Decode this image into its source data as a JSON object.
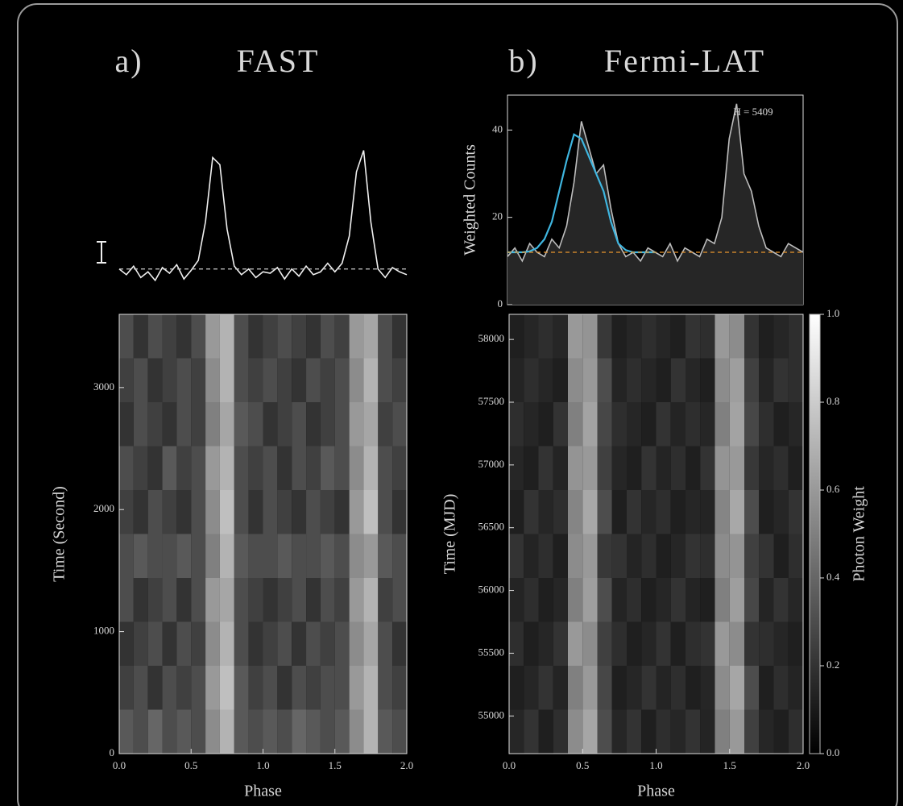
{
  "chart_data": [
    {
      "type": "line",
      "label": "a)",
      "title": "FAST",
      "x": [
        0,
        0.05,
        0.1,
        0.15,
        0.2,
        0.25,
        0.3,
        0.35,
        0.4,
        0.45,
        0.5,
        0.55,
        0.6,
        0.65,
        0.7,
        0.75,
        0.8,
        0.85,
        0.9,
        0.95,
        1,
        1.05,
        1.1,
        1.15,
        1.2,
        1.25,
        1.3,
        1.35,
        1.4,
        1.45,
        1.5,
        1.55,
        1.6,
        1.65,
        1.7,
        1.75,
        1.8,
        1.85,
        1.9,
        1.95,
        2
      ],
      "series": [
        {
          "color": "#f0f0f0",
          "values": [
            0.12,
            0.08,
            0.14,
            0.06,
            0.1,
            0.04,
            0.13,
            0.09,
            0.15,
            0.05,
            0.11,
            0.18,
            0.45,
            0.9,
            0.85,
            0.4,
            0.14,
            0.08,
            0.12,
            0.06,
            0.1,
            0.09,
            0.13,
            0.05,
            0.12,
            0.07,
            0.14,
            0.08,
            0.1,
            0.16,
            0.1,
            0.16,
            0.35,
            0.8,
            0.95,
            0.45,
            0.12,
            0.06,
            0.13,
            0.1,
            0.08
          ]
        }
      ],
      "baseline": 0.12,
      "baseline_color": "#cccccc",
      "xlim": [
        0,
        2
      ],
      "ylim": [
        0,
        1.1
      ]
    },
    {
      "type": "heatmap",
      "xlabel": "Phase",
      "ylabel": "Time (Second)",
      "xbins": [
        0,
        0.1,
        0.2,
        0.3,
        0.4,
        0.5,
        0.6,
        0.7,
        0.8,
        0.9,
        1,
        1.1,
        1.2,
        1.3,
        1.4,
        1.5,
        1.6,
        1.7,
        1.8,
        1.9,
        2
      ],
      "ybins": [
        0,
        360,
        720,
        1080,
        1440,
        1800,
        2160,
        2520,
        2880,
        3240,
        3600
      ],
      "z": [
        [
          0.35,
          0.3,
          0.4,
          0.3,
          0.35,
          0.3,
          0.55,
          0.7,
          0.35,
          0.3,
          0.35,
          0.3,
          0.4,
          0.35,
          0.3,
          0.35,
          0.55,
          0.7,
          0.35,
          0.3
        ],
        [
          0.25,
          0.3,
          0.2,
          0.3,
          0.25,
          0.3,
          0.6,
          0.75,
          0.35,
          0.25,
          0.3,
          0.2,
          0.3,
          0.25,
          0.3,
          0.3,
          0.6,
          0.7,
          0.3,
          0.25
        ],
        [
          0.2,
          0.25,
          0.3,
          0.2,
          0.3,
          0.25,
          0.55,
          0.7,
          0.3,
          0.2,
          0.25,
          0.3,
          0.2,
          0.3,
          0.25,
          0.3,
          0.55,
          0.65,
          0.3,
          0.2
        ],
        [
          0.3,
          0.2,
          0.25,
          0.3,
          0.2,
          0.3,
          0.6,
          0.65,
          0.3,
          0.25,
          0.2,
          0.25,
          0.3,
          0.2,
          0.3,
          0.25,
          0.6,
          0.7,
          0.25,
          0.3
        ],
        [
          0.3,
          0.35,
          0.3,
          0.3,
          0.35,
          0.3,
          0.5,
          0.7,
          0.35,
          0.3,
          0.3,
          0.35,
          0.3,
          0.3,
          0.35,
          0.3,
          0.55,
          0.6,
          0.35,
          0.3
        ],
        [
          0.25,
          0.2,
          0.3,
          0.25,
          0.2,
          0.3,
          0.55,
          0.75,
          0.3,
          0.2,
          0.3,
          0.25,
          0.2,
          0.3,
          0.25,
          0.2,
          0.6,
          0.75,
          0.3,
          0.2
        ],
        [
          0.3,
          0.25,
          0.2,
          0.35,
          0.25,
          0.3,
          0.6,
          0.7,
          0.3,
          0.25,
          0.3,
          0.2,
          0.3,
          0.25,
          0.35,
          0.3,
          0.55,
          0.7,
          0.3,
          0.25
        ],
        [
          0.2,
          0.3,
          0.25,
          0.2,
          0.3,
          0.25,
          0.5,
          0.65,
          0.35,
          0.3,
          0.2,
          0.25,
          0.3,
          0.2,
          0.25,
          0.3,
          0.6,
          0.65,
          0.25,
          0.3
        ],
        [
          0.25,
          0.3,
          0.2,
          0.25,
          0.3,
          0.25,
          0.55,
          0.7,
          0.3,
          0.25,
          0.3,
          0.25,
          0.2,
          0.3,
          0.25,
          0.3,
          0.55,
          0.7,
          0.3,
          0.25
        ],
        [
          0.3,
          0.2,
          0.3,
          0.25,
          0.2,
          0.3,
          0.6,
          0.7,
          0.3,
          0.2,
          0.25,
          0.3,
          0.25,
          0.2,
          0.3,
          0.25,
          0.6,
          0.65,
          0.3,
          0.2
        ]
      ],
      "zlim": [
        0,
        1
      ],
      "xlim": [
        0,
        2
      ],
      "ylim": [
        0,
        3600
      ],
      "xticks": [
        {
          "value": 0,
          "label": "0.0"
        },
        0.5,
        {
          "value": 1,
          "label": "1.0"
        },
        1.5,
        {
          "value": 2,
          "label": "2.0"
        }
      ],
      "yticks": [
        0,
        1000,
        2000,
        3000
      ]
    },
    {
      "type": "line",
      "label": "b)",
      "title": "Fermi-LAT",
      "ylabel": "Weighted Counts",
      "annotation": "H = 5409",
      "x": [
        0,
        0.05,
        0.1,
        0.15,
        0.2,
        0.25,
        0.3,
        0.35,
        0.4,
        0.45,
        0.5,
        0.55,
        0.6,
        0.65,
        0.7,
        0.75,
        0.8,
        0.85,
        0.9,
        0.95,
        1,
        1.05,
        1.1,
        1.15,
        1.2,
        1.25,
        1.3,
        1.35,
        1.4,
        1.45,
        1.5,
        1.55,
        1.6,
        1.65,
        1.7,
        1.75,
        1.8,
        1.85,
        1.9,
        1.95,
        2
      ],
      "series": [
        {
          "color": "#bdbdbd",
          "fill": "#262626",
          "values": [
            11,
            13,
            10,
            14,
            12,
            11,
            15,
            13,
            18,
            28,
            42,
            36,
            30,
            32,
            22,
            14,
            11,
            12,
            10,
            13,
            12,
            11,
            14,
            10,
            13,
            12,
            11,
            15,
            14,
            20,
            38,
            46,
            30,
            26,
            18,
            13,
            12,
            11,
            14,
            13,
            12
          ]
        },
        {
          "color": "#3fb6e0",
          "x": [
            0,
            0.05,
            0.1,
            0.15,
            0.2,
            0.25,
            0.3,
            0.35,
            0.4,
            0.45,
            0.5,
            0.55,
            0.6,
            0.65,
            0.7,
            0.75,
            0.8,
            0.85,
            0.9,
            0.95,
            1
          ],
          "values": [
            12,
            12,
            12,
            12.2,
            13,
            15,
            19,
            26,
            33,
            39,
            38,
            34,
            30,
            26,
            19,
            14,
            12.5,
            12,
            12,
            12,
            12
          ]
        }
      ],
      "baseline": 12,
      "baseline_color": "#e8952e",
      "xlim": [
        0,
        2
      ],
      "ylim": [
        0,
        48
      ],
      "yticks": [
        0,
        20,
        40
      ]
    },
    {
      "type": "heatmap",
      "xlabel": "Phase",
      "ylabel": "Time (MJD)",
      "colorbar_label": "Photon Weight",
      "xbins": [
        0,
        0.1,
        0.2,
        0.3,
        0.4,
        0.5,
        0.6,
        0.7,
        0.8,
        0.9,
        1,
        1.1,
        1.2,
        1.3,
        1.4,
        1.5,
        1.6,
        1.7,
        1.8,
        1.9,
        2
      ],
      "ybins": [
        54700,
        55050,
        55400,
        55750,
        56100,
        56450,
        56800,
        57150,
        57500,
        57850,
        58200
      ],
      "z": [
        [
          0.15,
          0.2,
          0.12,
          0.18,
          0.55,
          0.65,
          0.3,
          0.15,
          0.2,
          0.12,
          0.18,
          0.15,
          0.2,
          0.14,
          0.5,
          0.6,
          0.25,
          0.15,
          0.12,
          0.18
        ],
        [
          0.12,
          0.15,
          0.2,
          0.14,
          0.5,
          0.6,
          0.28,
          0.12,
          0.15,
          0.2,
          0.14,
          0.18,
          0.12,
          0.15,
          0.55,
          0.65,
          0.3,
          0.12,
          0.18,
          0.14
        ],
        [
          0.18,
          0.12,
          0.15,
          0.2,
          0.6,
          0.55,
          0.25,
          0.18,
          0.12,
          0.15,
          0.2,
          0.12,
          0.18,
          0.2,
          0.6,
          0.55,
          0.2,
          0.18,
          0.15,
          0.12
        ],
        [
          0.14,
          0.18,
          0.12,
          0.15,
          0.5,
          0.62,
          0.3,
          0.14,
          0.18,
          0.12,
          0.15,
          0.2,
          0.14,
          0.12,
          0.5,
          0.62,
          0.28,
          0.14,
          0.2,
          0.15
        ],
        [
          0.2,
          0.14,
          0.18,
          0.12,
          0.55,
          0.6,
          0.22,
          0.2,
          0.14,
          0.18,
          0.12,
          0.15,
          0.2,
          0.18,
          0.55,
          0.58,
          0.25,
          0.2,
          0.12,
          0.18
        ],
        [
          0.12,
          0.2,
          0.15,
          0.18,
          0.52,
          0.66,
          0.3,
          0.12,
          0.2,
          0.15,
          0.18,
          0.12,
          0.15,
          0.14,
          0.52,
          0.66,
          0.3,
          0.12,
          0.15,
          0.2
        ],
        [
          0.15,
          0.12,
          0.2,
          0.14,
          0.58,
          0.6,
          0.25,
          0.15,
          0.12,
          0.2,
          0.14,
          0.18,
          0.12,
          0.2,
          0.58,
          0.6,
          0.22,
          0.15,
          0.18,
          0.12
        ],
        [
          0.18,
          0.15,
          0.12,
          0.2,
          0.5,
          0.64,
          0.28,
          0.18,
          0.15,
          0.12,
          0.2,
          0.14,
          0.18,
          0.15,
          0.5,
          0.64,
          0.28,
          0.18,
          0.12,
          0.15
        ],
        [
          0.14,
          0.18,
          0.15,
          0.12,
          0.55,
          0.6,
          0.3,
          0.14,
          0.18,
          0.15,
          0.12,
          0.2,
          0.15,
          0.12,
          0.55,
          0.62,
          0.25,
          0.14,
          0.2,
          0.18
        ],
        [
          0.12,
          0.15,
          0.18,
          0.15,
          0.6,
          0.58,
          0.22,
          0.12,
          0.15,
          0.18,
          0.15,
          0.12,
          0.2,
          0.18,
          0.6,
          0.55,
          0.2,
          0.12,
          0.15,
          0.18
        ]
      ],
      "zlim": [
        0,
        1
      ],
      "xlim": [
        0,
        2
      ],
      "ylim": [
        54700,
        58200
      ],
      "xticks": [
        {
          "value": 0,
          "label": "0.0"
        },
        0.5,
        {
          "value": 1,
          "label": "1.0"
        },
        1.5,
        {
          "value": 2,
          "label": "2.0"
        }
      ],
      "yticks": [
        55000,
        55500,
        56000,
        56500,
        57000,
        57500,
        58000
      ],
      "colorbar_ticks": [
        {
          "value": 0,
          "label": "0.0"
        },
        0.2,
        0.4,
        0.6,
        0.8,
        {
          "value": 1,
          "label": "1.0"
        }
      ]
    }
  ]
}
